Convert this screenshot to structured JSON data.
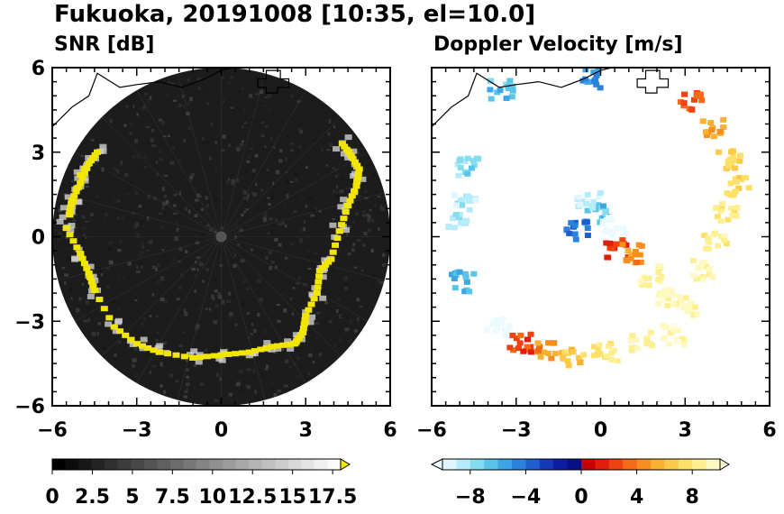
{
  "figure": {
    "title": "Fukuoka, 20191008 [10:35, el=10.0]"
  },
  "colors": {
    "frame": "#000000",
    "radar_disk": "#1c1c1c",
    "snr_echo": "#f2e600",
    "snr_echo_halo": "#d0d0d0",
    "coastline": "#000000"
  },
  "chart_data": [
    {
      "type": "heatmap",
      "title": "SNR [dB]",
      "xlim": [
        -6,
        6
      ],
      "ylim": [
        -6,
        6
      ],
      "xticks": [
        -6,
        -3,
        0,
        3,
        6
      ],
      "yticks": [
        -6,
        -3,
        0,
        3,
        6
      ],
      "x_tick_labels": [
        "−6",
        "−3",
        "0",
        "3",
        "6"
      ],
      "y_tick_labels": [
        "−6",
        "−3",
        "0",
        "3",
        "6"
      ],
      "radar_range": 6,
      "echo_ring": [
        [
          -5.4,
          0.8
        ],
        [
          -5.3,
          1.3
        ],
        [
          -5.0,
          1.9
        ],
        [
          -4.7,
          2.6
        ],
        [
          -4.4,
          3.0
        ],
        [
          -5.0,
          2.2
        ],
        [
          -5.5,
          0.3
        ],
        [
          -5.0,
          -0.6
        ],
        [
          -4.7,
          -1.3
        ],
        [
          -4.5,
          -1.9
        ],
        [
          -3.8,
          -3.2
        ],
        [
          -3.0,
          -3.8
        ],
        [
          -2.2,
          -4.1
        ],
        [
          -1.0,
          -4.3
        ],
        [
          0.0,
          -4.2
        ],
        [
          1.0,
          -4.1
        ],
        [
          1.8,
          -3.9
        ],
        [
          2.6,
          -3.8
        ],
        [
          2.9,
          -3.4
        ],
        [
          3.0,
          -2.8
        ],
        [
          3.4,
          -2.0
        ],
        [
          3.5,
          -1.2
        ],
        [
          3.9,
          -0.8
        ],
        [
          4.2,
          0.2
        ],
        [
          4.5,
          1.1
        ],
        [
          4.8,
          1.8
        ],
        [
          4.9,
          2.4
        ],
        [
          4.6,
          2.9
        ],
        [
          4.3,
          3.3
        ]
      ],
      "colorbar": {
        "range": [
          0,
          18
        ],
        "ticks": [
          0,
          2.5,
          5,
          7.5,
          10,
          12.5,
          15,
          17.5
        ],
        "tick_labels": [
          "0",
          "2.5",
          "5",
          "7.5",
          "10",
          "12.5",
          "15",
          "17.5"
        ],
        "extend": "max",
        "colors": [
          "#000000",
          "#0c0c0c",
          "#181818",
          "#242424",
          "#303030",
          "#3c3c3c",
          "#484848",
          "#545454",
          "#606060",
          "#6c6c6c",
          "#787878",
          "#848484",
          "#909090",
          "#9c9c9c",
          "#a8a8a8",
          "#b4b4b4",
          "#c0c0c0",
          "#cccccc",
          "#d8d8d8",
          "#e4e4e4",
          "#f0f0f0",
          "#fafafa"
        ],
        "extend_color": "#f2e600"
      }
    },
    {
      "type": "heatmap",
      "title": "Doppler Velocity [m/s]",
      "xlim": [
        -6,
        6
      ],
      "ylim": [
        -6,
        6
      ],
      "xticks": [
        -6,
        -3,
        0,
        3,
        6
      ],
      "yticks": [
        -6,
        -3,
        0,
        3,
        6
      ],
      "x_tick_labels": [
        "−6",
        "−3",
        "0",
        "3",
        "6"
      ],
      "y_tick_labels": [
        "−6",
        "−3",
        "0",
        "3",
        "6"
      ],
      "radar_range": 6,
      "echo_blobs": [
        {
          "x": -4.8,
          "y": 1.2,
          "v": -8.5
        },
        {
          "x": -5.0,
          "y": 0.6,
          "v": -8.2
        },
        {
          "x": -4.7,
          "y": 2.5,
          "v": -7.5
        },
        {
          "x": -4.9,
          "y": -1.6,
          "v": -6.0
        },
        {
          "x": -3.5,
          "y": 5.2,
          "v": -6.5
        },
        {
          "x": -0.3,
          "y": 5.6,
          "v": -5.0
        },
        {
          "x": -3.6,
          "y": -3.2,
          "v": -11.0
        },
        {
          "x": -2.8,
          "y": -3.8,
          "v": 2.5
        },
        {
          "x": -2.0,
          "y": -4.1,
          "v": 4.5
        },
        {
          "x": -1.0,
          "y": -4.3,
          "v": 6.5
        },
        {
          "x": 0.2,
          "y": -4.1,
          "v": 8.0
        },
        {
          "x": 1.5,
          "y": -3.7,
          "v": 9.0
        },
        {
          "x": 2.6,
          "y": -3.5,
          "v": 9.5
        },
        {
          "x": 3.2,
          "y": -2.5,
          "v": 9.5
        },
        {
          "x": 3.7,
          "y": -1.2,
          "v": 9.0
        },
        {
          "x": 4.1,
          "y": -0.2,
          "v": 8.5
        },
        {
          "x": 4.5,
          "y": 0.9,
          "v": 8.0
        },
        {
          "x": 4.9,
          "y": 1.8,
          "v": 7.5
        },
        {
          "x": 4.6,
          "y": 2.7,
          "v": 7.0
        },
        {
          "x": 4.0,
          "y": 3.8,
          "v": 5.0
        },
        {
          "x": 3.2,
          "y": 4.8,
          "v": 3.0
        },
        {
          "x": -0.1,
          "y": 0.8,
          "v": -6.5
        },
        {
          "x": -0.8,
          "y": 0.2,
          "v": -4.0
        },
        {
          "x": -0.4,
          "y": 1.3,
          "v": -9.0
        },
        {
          "x": 0.5,
          "y": 0.4,
          "v": -11.0
        },
        {
          "x": 0.6,
          "y": -0.4,
          "v": 2.0
        },
        {
          "x": 1.2,
          "y": -0.6,
          "v": 4.5
        },
        {
          "x": 1.8,
          "y": -1.4,
          "v": 8.5
        },
        {
          "x": 2.4,
          "y": -2.2,
          "v": 9.5
        }
      ],
      "colorbar": {
        "range": [
          -10,
          10
        ],
        "ticks": [
          -8,
          -4,
          0,
          4,
          8
        ],
        "tick_labels": [
          "−8",
          "−4",
          "0",
          "4",
          "8"
        ],
        "extend": "both",
        "colors": [
          "#dff6ff",
          "#b5ecfb",
          "#84dcf0",
          "#58c4ea",
          "#3aa6e6",
          "#2a82dc",
          "#1e5ed0",
          "#1438bc",
          "#0c1ca4",
          "#081088",
          "#c80000",
          "#e01e0a",
          "#ee4210",
          "#f66a16",
          "#f88e1e",
          "#fab030",
          "#fcca48",
          "#fde068",
          "#fef090",
          "#fff8c0"
        ],
        "extend_low_color": "#eafaff",
        "extend_high_color": "#fffbdc"
      }
    }
  ]
}
